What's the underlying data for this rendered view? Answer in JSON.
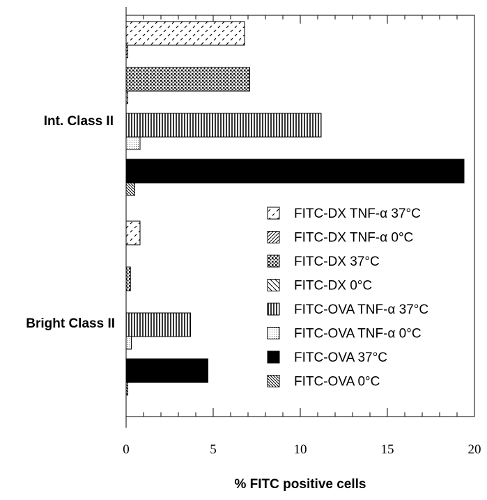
{
  "chart_data": {
    "type": "bar",
    "orientation": "horizontal",
    "xlabel": "% FITC positive cells",
    "xlim": [
      0,
      20
    ],
    "xticks": [
      "0",
      "5",
      "10",
      "15",
      "20"
    ],
    "categories": [
      "Int. Class II",
      "Bright Class II"
    ],
    "series": [
      {
        "name": "FITC-DX TNF-α 37°C",
        "pattern": "dashes",
        "values": [
          6.8,
          0.8
        ]
      },
      {
        "name": "FITC-DX TNF-α 0°C",
        "pattern": "diag-right",
        "values": [
          0.1,
          0.0
        ]
      },
      {
        "name": "FITC-DX 37°C",
        "pattern": "dense-dots",
        "values": [
          7.1,
          0.25
        ]
      },
      {
        "name": "FITC-DX 0°C",
        "pattern": "diag-left-sparse",
        "values": [
          0.1,
          0.0
        ]
      },
      {
        "name": "FITC-OVA TNF-α 37°C",
        "pattern": "vertical-lines",
        "values": [
          11.2,
          3.7
        ]
      },
      {
        "name": "FITC-OVA TNF-α 0°C",
        "pattern": "fine-dots",
        "values": [
          0.8,
          0.3
        ]
      },
      {
        "name": "FITC-OVA 37°C",
        "pattern": "solid",
        "values": [
          19.4,
          4.7
        ]
      },
      {
        "name": "FITC-OVA 0°C",
        "pattern": "diag-left-dense",
        "values": [
          0.5,
          0.1
        ]
      }
    ],
    "grid": false,
    "legend_position": "bottom-right"
  }
}
